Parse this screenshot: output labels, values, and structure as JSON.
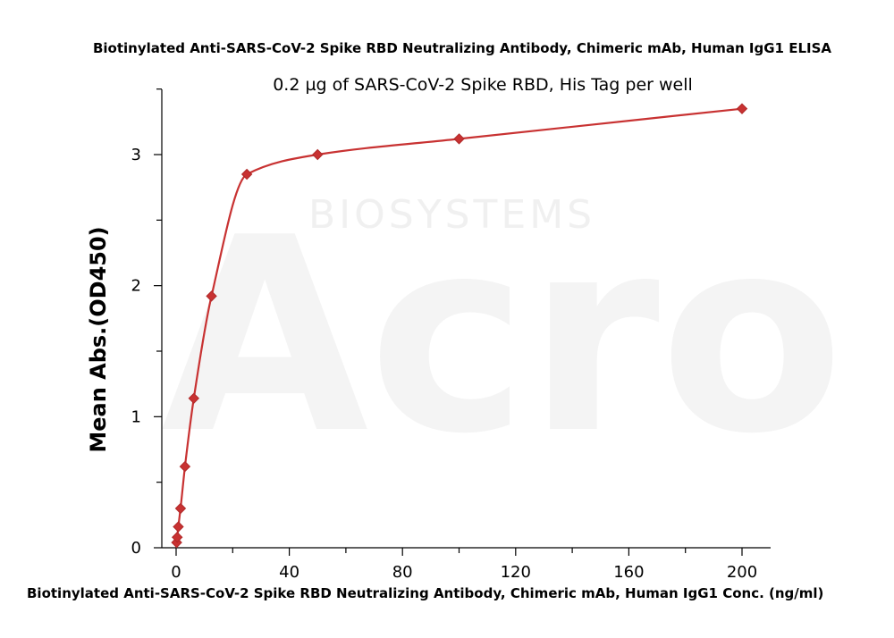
{
  "chart_data": {
    "type": "scatter",
    "title": "Biotinylated Anti-SARS-CoV-2 Spike RBD Neutralizing Antibody, Chimeric mAb, Human IgG1 ELISA",
    "subtitle": "0.2 µg of SARS-CoV-2 Spike RBD, His Tag per well",
    "xlabel": "Biotinylated Anti-SARS-CoV-2 Spike RBD Neutralizing Antibody, Chimeric mAb, Human IgG1 Conc. (ng/ml)",
    "ylabel": "Mean Abs.(OD450)",
    "xlim": [
      -5,
      210
    ],
    "ylim": [
      0,
      3.5
    ],
    "xticks": [
      0,
      40,
      80,
      120,
      160,
      200
    ],
    "yticks": [
      0,
      1,
      2,
      3
    ],
    "grid": false,
    "watermark": {
      "brand": "Acro",
      "text": "BIOSYSTEMS"
    },
    "series": [
      {
        "color": "#c83232",
        "marker": "diamond",
        "points": [
          {
            "x": 0.195,
            "y": 0.04
          },
          {
            "x": 0.39,
            "y": 0.08
          },
          {
            "x": 0.78,
            "y": 0.16
          },
          {
            "x": 1.56,
            "y": 0.3
          },
          {
            "x": 3.13,
            "y": 0.62
          },
          {
            "x": 6.25,
            "y": 1.14
          },
          {
            "x": 12.5,
            "y": 1.92
          },
          {
            "x": 25,
            "y": 2.85
          },
          {
            "x": 50,
            "y": 3.0
          },
          {
            "x": 100,
            "y": 3.12
          },
          {
            "x": 200,
            "y": 3.35
          }
        ]
      }
    ]
  }
}
